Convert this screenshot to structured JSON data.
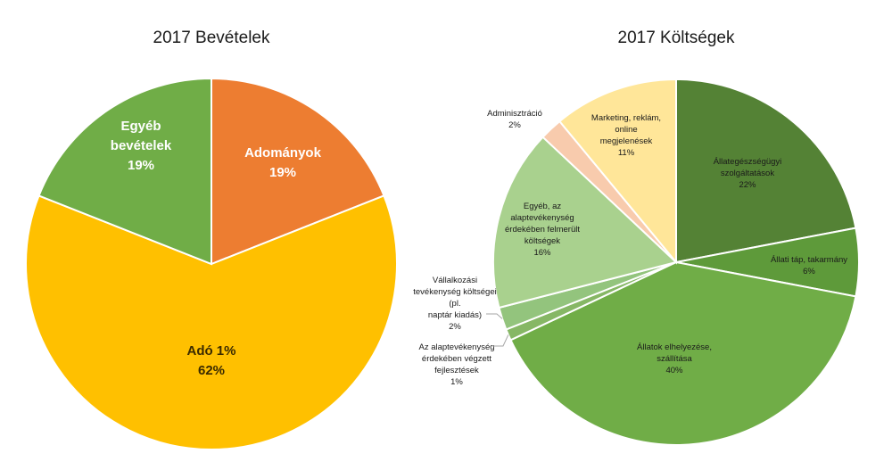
{
  "chart_data": [
    {
      "type": "pie",
      "title": "2017 Bevételek",
      "slices": [
        {
          "label": "Adományok",
          "value": 19,
          "value_label": "19%",
          "color": "#ED7D31"
        },
        {
          "label": "Adó 1%",
          "value": 62,
          "value_label": "62%",
          "color": "#FFC000"
        },
        {
          "label": "Egyéb bevételek",
          "value": 19,
          "value_label": "19%",
          "color": "#70AD47"
        }
      ]
    },
    {
      "type": "pie",
      "title": "2017 Költségek",
      "slices": [
        {
          "label": "Állategészségügyi szolgáltatások",
          "value": 22,
          "value_label": "22%",
          "color": "#548235"
        },
        {
          "label": "Állati táp, takarmány",
          "value": 6,
          "value_label": "6%",
          "color": "#5E9A3A"
        },
        {
          "label": "Állatok elhelyezése, szállítása",
          "value": 40,
          "value_label": "40%",
          "color": "#70AD47"
        },
        {
          "label": "Az alaptevékenység érdekében végzett fejlesztések",
          "value": 1,
          "value_label": "1%",
          "color": "#86B765"
        },
        {
          "label": "Vállalkozási tevékenység költségei (pl. naptár kiadás)",
          "value": 2,
          "value_label": "2%",
          "color": "#93C47D"
        },
        {
          "label": "Egyéb, az alaptevékenység érdekében felmerült költségek",
          "value": 16,
          "value_label": "16%",
          "color": "#A9D18E"
        },
        {
          "label": "Adminisztráció",
          "value": 2,
          "value_label": "2%",
          "color": "#F8CBAD"
        },
        {
          "label": "Marketing, reklám, online megjelenések",
          "value": 11,
          "value_label": "11%",
          "color": "#FFE699"
        }
      ]
    }
  ]
}
